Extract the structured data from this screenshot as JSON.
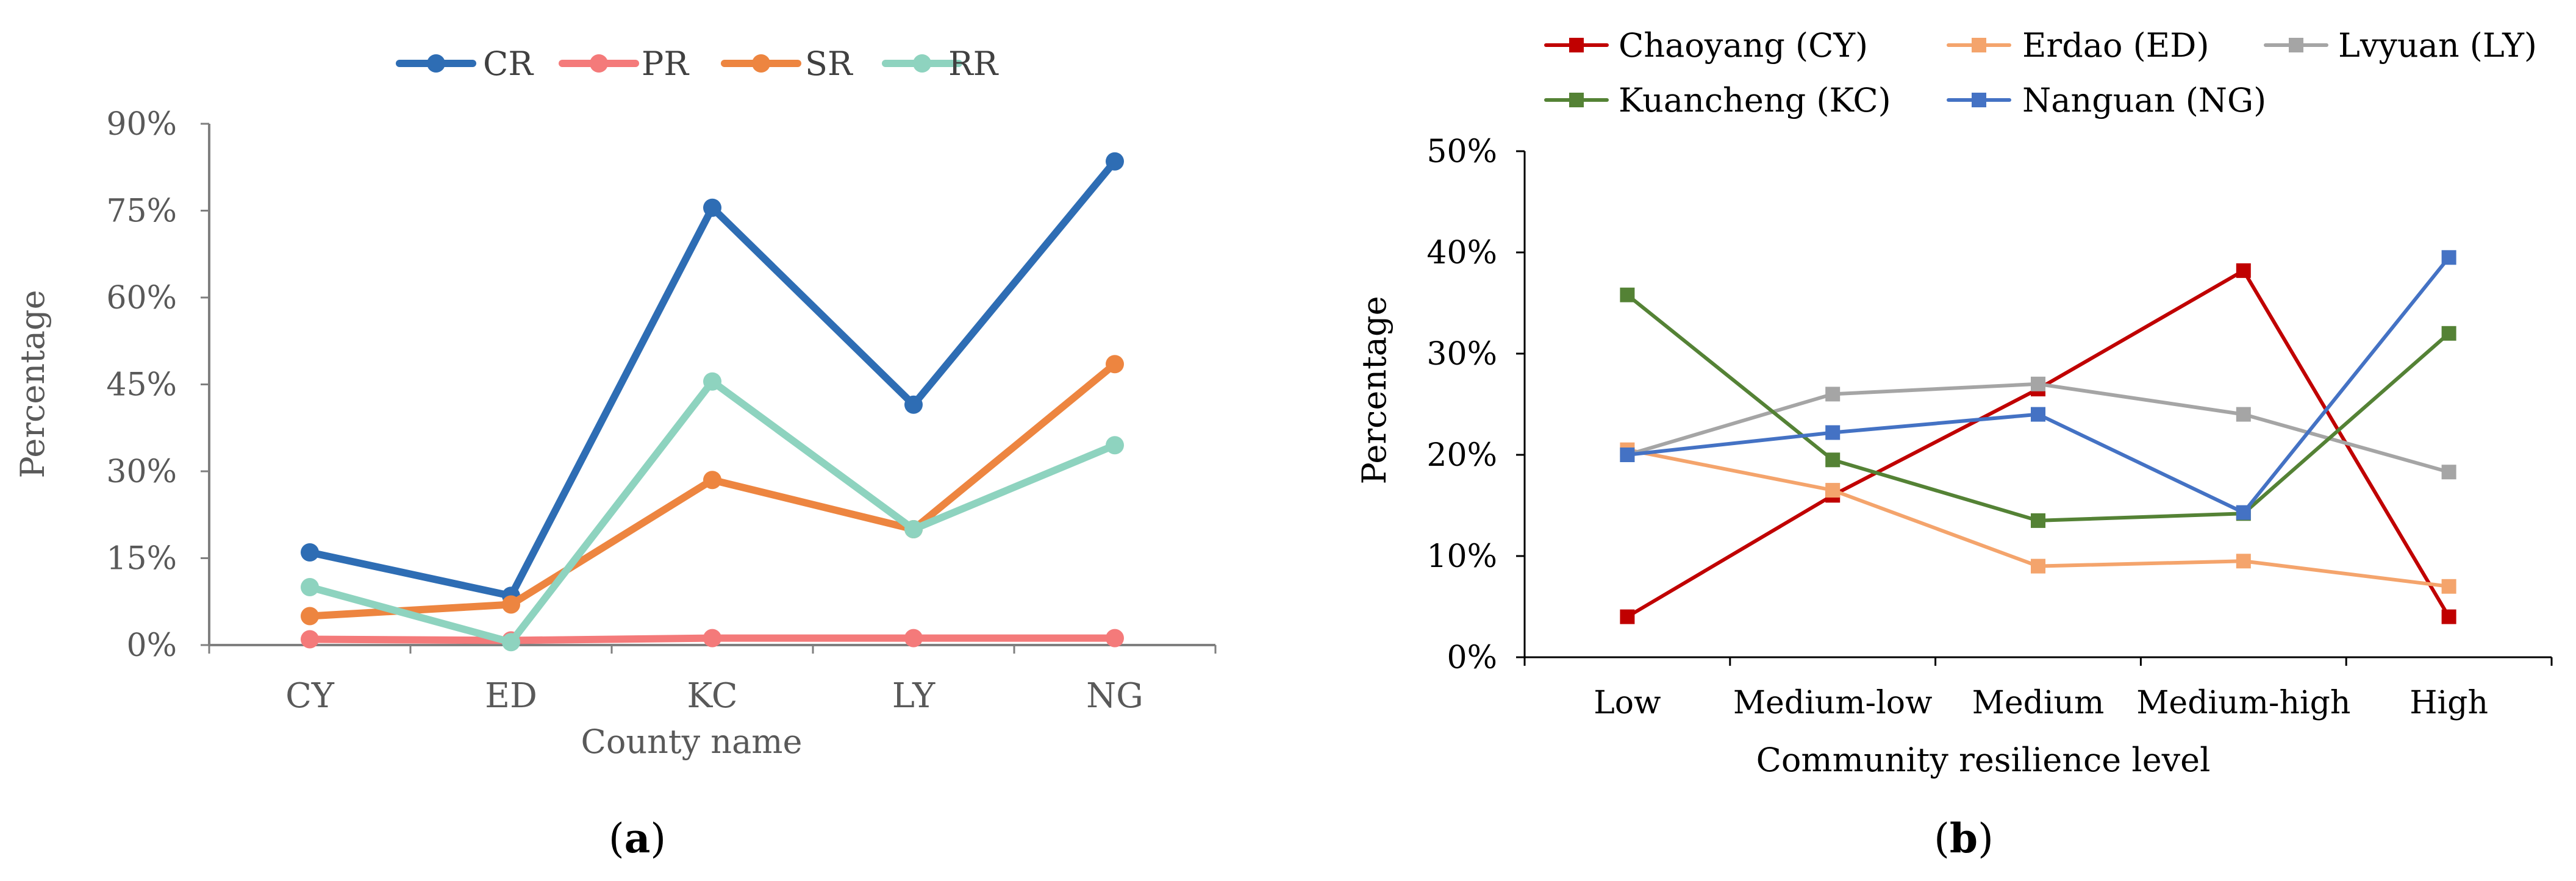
{
  "chart_data": [
    {
      "type": "line",
      "panel_label": "a",
      "title": "",
      "xlabel": "County name",
      "ylabel": "Percentage",
      "categories": [
        "CY",
        "ED",
        "KC",
        "LY",
        "NG"
      ],
      "ylim": [
        0,
        90
      ],
      "yticks": [
        0,
        15,
        30,
        45,
        60,
        75,
        90
      ],
      "ytick_labels": [
        "0%",
        "15%",
        "30%",
        "45%",
        "60%",
        "75%",
        "90%"
      ],
      "legend_position": "top",
      "marker": "circle",
      "series": [
        {
          "name": "CR",
          "color": "#2E6DB4",
          "values": [
            16,
            8.5,
            75.5,
            41.5,
            83.5
          ]
        },
        {
          "name": "PR",
          "color": "#F47A7A",
          "values": [
            1,
            0.8,
            1.2,
            1.2,
            1.2
          ]
        },
        {
          "name": "SR",
          "color": "#ED8540",
          "values": [
            5,
            7,
            28.5,
            20,
            48.5
          ]
        },
        {
          "name": "RR",
          "color": "#8ED3BF",
          "values": [
            10,
            0.5,
            45.5,
            20,
            34.5
          ]
        }
      ]
    },
    {
      "type": "line",
      "panel_label": "b",
      "title": "",
      "xlabel": "Community resilience level",
      "ylabel": "Percentage",
      "categories": [
        "Low",
        "Medium-low",
        "Medium",
        "Medium-high",
        "High"
      ],
      "ylim": [
        0,
        50
      ],
      "yticks": [
        0,
        10,
        20,
        30,
        40,
        50
      ],
      "ytick_labels": [
        "0%",
        "10%",
        "20%",
        "30%",
        "40%",
        "50%"
      ],
      "legend_position": "top",
      "marker": "square",
      "series": [
        {
          "name": "Chaoyang (CY)",
          "color": "#C00000",
          "values": [
            4,
            16,
            26.5,
            38.2,
            4
          ]
        },
        {
          "name": "Erdao (ED)",
          "color": "#F4A46C",
          "values": [
            20.5,
            16.5,
            9,
            9.5,
            7
          ]
        },
        {
          "name": "Lvyuan (LY)",
          "color": "#A5A5A5",
          "values": [
            20,
            26,
            27,
            24,
            18.3
          ]
        },
        {
          "name": "Kuancheng (KC)",
          "color": "#548235",
          "values": [
            35.8,
            19.5,
            13.5,
            14.2,
            32
          ]
        },
        {
          "name": "Nanguan (NG)",
          "color": "#4472C4",
          "values": [
            20,
            22.2,
            24,
            14.3,
            39.5
          ]
        }
      ]
    }
  ]
}
